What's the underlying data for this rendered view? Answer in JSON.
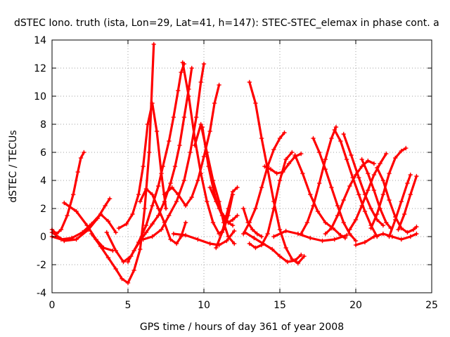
{
  "chart_data": {
    "type": "scatter",
    "title": "dSTEC Iono. truth (ista, Lon=29, Lat=41, h=147): STEC-STEC_elemax in phase cont. a",
    "xlabel": "GPS time / hours of day 361 of year 2008",
    "ylabel": "dSTEC  / TECUs",
    "xlim": [
      0,
      25
    ],
    "ylim": [
      -4,
      14
    ],
    "xticks": [
      0,
      5,
      10,
      15,
      20,
      25
    ],
    "yticks": [
      -4,
      -2,
      0,
      2,
      4,
      6,
      8,
      10,
      12,
      14
    ],
    "grid": true,
    "marker": "plus",
    "color": "#ff0000",
    "series": [
      {
        "x": [
          0.0,
          0.3,
          0.6,
          1.0,
          1.4,
          1.7,
          1.9,
          2.1
        ],
        "y": [
          0.5,
          0.2,
          0.5,
          1.5,
          3.0,
          4.6,
          5.6,
          6.0
        ]
      },
      {
        "x": [
          0.0,
          0.8,
          1.6,
          2.4,
          3.0,
          3.5,
          3.8
        ],
        "y": [
          0.3,
          -0.3,
          -0.2,
          0.5,
          1.3,
          2.2,
          2.7
        ]
      },
      {
        "x": [
          0.8,
          1.6,
          2.3,
          2.9,
          3.4,
          4.0
        ],
        "y": [
          2.4,
          1.8,
          0.8,
          -0.2,
          -0.8,
          -1.0
        ]
      },
      {
        "x": [
          0.0,
          0.6,
          1.3,
          2.0,
          2.6,
          3.2,
          3.7,
          4.2
        ],
        "y": [
          0.0,
          -0.2,
          -0.1,
          0.3,
          0.9,
          1.6,
          1.1,
          0.3
        ]
      },
      {
        "x": [
          2.6,
          3.2,
          3.7,
          4.2,
          4.6,
          5.0,
          5.4,
          5.8,
          6.1,
          6.4,
          6.7
        ],
        "y": [
          0.2,
          -0.7,
          -1.5,
          -2.3,
          -3.0,
          -3.3,
          -2.4,
          -0.9,
          2.0,
          6.0,
          13.7
        ]
      },
      {
        "x": [
          3.6,
          4.2,
          4.7,
          5.2,
          5.7,
          6.2,
          6.6,
          7.0,
          7.3,
          7.7,
          8.0,
          8.3,
          8.5,
          8.7
        ],
        "y": [
          0.3,
          -1.0,
          -1.8,
          -1.4,
          -0.4,
          0.8,
          2.2,
          3.6,
          5.0,
          6.8,
          8.5,
          10.4,
          11.7,
          12.3
        ]
      },
      {
        "x": [
          5.0,
          5.4,
          5.8,
          6.2,
          6.6,
          7.0,
          7.4,
          7.8,
          8.1,
          8.4,
          8.7,
          9.0,
          9.2
        ],
        "y": [
          -1.8,
          -1.0,
          -0.3,
          0.3,
          0.9,
          1.5,
          2.5,
          3.8,
          5.0,
          6.5,
          8.5,
          10.5,
          12.0
        ]
      },
      {
        "x": [
          4.4,
          4.9,
          5.3,
          5.7,
          6.0,
          6.3,
          6.6,
          6.9,
          7.2,
          7.5
        ],
        "y": [
          0.6,
          0.9,
          1.6,
          3.0,
          5.0,
          8.0,
          9.5,
          7.5,
          4.5,
          2.0
        ]
      },
      {
        "x": [
          5.8,
          6.2,
          6.6,
          7.0,
          7.4,
          7.8,
          8.2,
          8.5,
          8.8
        ],
        "y": [
          2.5,
          3.4,
          3.0,
          2.0,
          1.0,
          -0.2,
          -0.5,
          0.0,
          1.0
        ]
      },
      {
        "x": [
          6.0,
          6.6,
          7.2,
          7.7,
          8.2,
          8.7,
          9.1,
          9.5,
          9.8,
          10.0
        ],
        "y": [
          -0.2,
          0.0,
          0.5,
          1.5,
          2.5,
          4.0,
          6.0,
          8.5,
          11.0,
          12.3
        ]
      },
      {
        "x": [
          7.4,
          7.9,
          8.3,
          8.8,
          9.2,
          9.6,
          10.0,
          10.4,
          10.7,
          11.0
        ],
        "y": [
          3.0,
          3.5,
          3.0,
          2.2,
          2.8,
          4.0,
          5.7,
          7.5,
          9.5,
          10.8
        ]
      },
      {
        "x": [
          8.6,
          9.0,
          9.4,
          9.8,
          10.2,
          10.6,
          11.0,
          11.3,
          11.6,
          11.9
        ],
        "y": [
          12.4,
          10.0,
          7.0,
          4.5,
          2.5,
          1.0,
          0.2,
          0.5,
          1.5,
          3.0
        ]
      },
      {
        "x": [
          9.4,
          9.8,
          10.2,
          10.6,
          11.0,
          11.3,
          11.6,
          12.0
        ],
        "y": [
          6.5,
          8.0,
          6.0,
          4.0,
          2.5,
          1.0,
          0.0,
          -0.5
        ]
      },
      {
        "x": [
          9.9,
          10.3,
          10.7,
          11.0,
          11.3,
          11.6,
          11.9,
          12.2
        ],
        "y": [
          7.8,
          5.0,
          3.0,
          2.0,
          1.5,
          1.0,
          1.2,
          1.5
        ]
      },
      {
        "x": [
          8.0,
          8.8,
          9.6,
          10.4,
          11.0,
          11.5,
          12.0
        ],
        "y": [
          0.2,
          0.1,
          -0.2,
          -0.5,
          -0.6,
          -0.3,
          0.4
        ]
      },
      {
        "x": [
          10.8,
          11.2,
          11.6,
          11.9,
          12.2
        ],
        "y": [
          -0.8,
          0.3,
          2.0,
          3.2,
          3.5
        ]
      },
      {
        "x": [
          10.4,
          10.8,
          11.2,
          11.6,
          11.9
        ],
        "y": [
          3.5,
          2.5,
          1.5,
          1.0,
          0.8
        ]
      },
      {
        "x": [
          12.6,
          13.0,
          13.4,
          13.8,
          14.2,
          14.6,
          15.0,
          15.3
        ],
        "y": [
          0.2,
          1.0,
          2.0,
          3.5,
          5.0,
          6.2,
          7.0,
          7.4
        ]
      },
      {
        "x": [
          13.0,
          13.4,
          13.8,
          14.2,
          14.6,
          15.0,
          15.4,
          15.8
        ],
        "y": [
          -0.5,
          -0.8,
          -0.6,
          0.2,
          2.0,
          4.0,
          5.5,
          6.0
        ]
      },
      {
        "x": [
          12.7,
          13.3,
          13.9,
          14.5,
          15.0,
          15.5,
          16.0,
          16.4
        ],
        "y": [
          0.3,
          -0.1,
          -0.5,
          -0.9,
          -1.4,
          -1.8,
          -1.7,
          -1.3
        ]
      },
      {
        "x": [
          13.0,
          13.4,
          13.8,
          14.2,
          14.6,
          15.0,
          15.4,
          15.8,
          16.2,
          16.6
        ],
        "y": [
          11.0,
          9.5,
          7.0,
          4.8,
          2.5,
          0.5,
          -0.8,
          -1.6,
          -1.9,
          -1.4
        ]
      },
      {
        "x": [
          12.6,
          12.9,
          13.2,
          13.5,
          13.8
        ],
        "y": [
          2.0,
          1.0,
          0.5,
          0.2,
          0.0
        ]
      },
      {
        "x": [
          14.0,
          14.4,
          14.8,
          15.2,
          15.6,
          16.0,
          16.4
        ],
        "y": [
          5.0,
          4.8,
          4.5,
          4.6,
          5.2,
          5.7,
          5.9
        ]
      },
      {
        "x": [
          16.0,
          16.5,
          17.0,
          17.5,
          18.0,
          18.5,
          19.0,
          19.3
        ],
        "y": [
          5.8,
          4.5,
          3.0,
          1.8,
          1.0,
          0.6,
          0.1,
          -0.1
        ]
      },
      {
        "x": [
          16.4,
          16.8,
          17.2,
          17.6,
          18.0,
          18.4,
          18.7
        ],
        "y": [
          0.2,
          1.0,
          2.2,
          3.8,
          5.5,
          7.0,
          7.8
        ]
      },
      {
        "x": [
          17.2,
          17.6,
          18.0,
          18.4,
          18.8,
          19.2,
          19.6,
          20.0
        ],
        "y": [
          7.0,
          6.0,
          4.8,
          3.5,
          2.2,
          1.0,
          0.2,
          -0.3
        ]
      },
      {
        "x": [
          18.6,
          19.0,
          19.4,
          19.8,
          20.2,
          20.6,
          21.0,
          21.4
        ],
        "y": [
          7.6,
          6.8,
          5.5,
          4.2,
          3.0,
          1.8,
          0.8,
          0.0
        ]
      },
      {
        "x": [
          19.2,
          19.7,
          20.2,
          20.6,
          21.0,
          21.4,
          21.8
        ],
        "y": [
          7.3,
          5.8,
          4.2,
          3.0,
          2.0,
          1.2,
          0.8
        ]
      },
      {
        "x": [
          18.0,
          18.4,
          18.8,
          19.2,
          19.6,
          20.0,
          20.4,
          20.8,
          21.2
        ],
        "y": [
          0.2,
          0.6,
          1.5,
          2.6,
          3.6,
          4.4,
          5.0,
          5.4,
          5.2
        ]
      },
      {
        "x": [
          19.6,
          20.0,
          20.4,
          20.8,
          21.2,
          21.6,
          22.0
        ],
        "y": [
          0.5,
          1.2,
          2.2,
          3.3,
          4.4,
          5.2,
          5.9
        ]
      },
      {
        "x": [
          20.4,
          20.8,
          21.2,
          21.6,
          22.0,
          22.3
        ],
        "y": [
          5.5,
          4.5,
          3.3,
          2.0,
          1.0,
          0.6
        ]
      },
      {
        "x": [
          21.0,
          21.4,
          21.8,
          22.2,
          22.6,
          23.0,
          23.3
        ],
        "y": [
          0.6,
          1.6,
          3.0,
          4.5,
          5.6,
          6.1,
          6.3
        ]
      },
      {
        "x": [
          21.4,
          21.8,
          22.2,
          22.6,
          23.0,
          23.4,
          23.8,
          24.0
        ],
        "y": [
          4.9,
          4.0,
          2.6,
          1.4,
          0.6,
          0.3,
          0.5,
          0.7
        ]
      },
      {
        "x": [
          22.2,
          22.6,
          23.0,
          23.4,
          23.6
        ],
        "y": [
          0.0,
          1.2,
          2.5,
          3.8,
          4.4
        ]
      },
      {
        "x": [
          22.8,
          23.2,
          23.6,
          24.0
        ],
        "y": [
          0.5,
          1.6,
          3.0,
          4.3
        ]
      },
      {
        "x": [
          20.0,
          20.6,
          21.2,
          21.8,
          22.4,
          23.0,
          23.6,
          24.0
        ],
        "y": [
          -0.6,
          -0.4,
          0.0,
          0.2,
          0.0,
          -0.2,
          0.0,
          0.2
        ]
      },
      {
        "x": [
          14.6,
          15.4,
          16.2,
          17.0,
          17.8,
          18.6,
          19.4
        ],
        "y": [
          0.0,
          0.4,
          0.2,
          -0.1,
          -0.3,
          -0.2,
          0.1
        ]
      }
    ]
  }
}
